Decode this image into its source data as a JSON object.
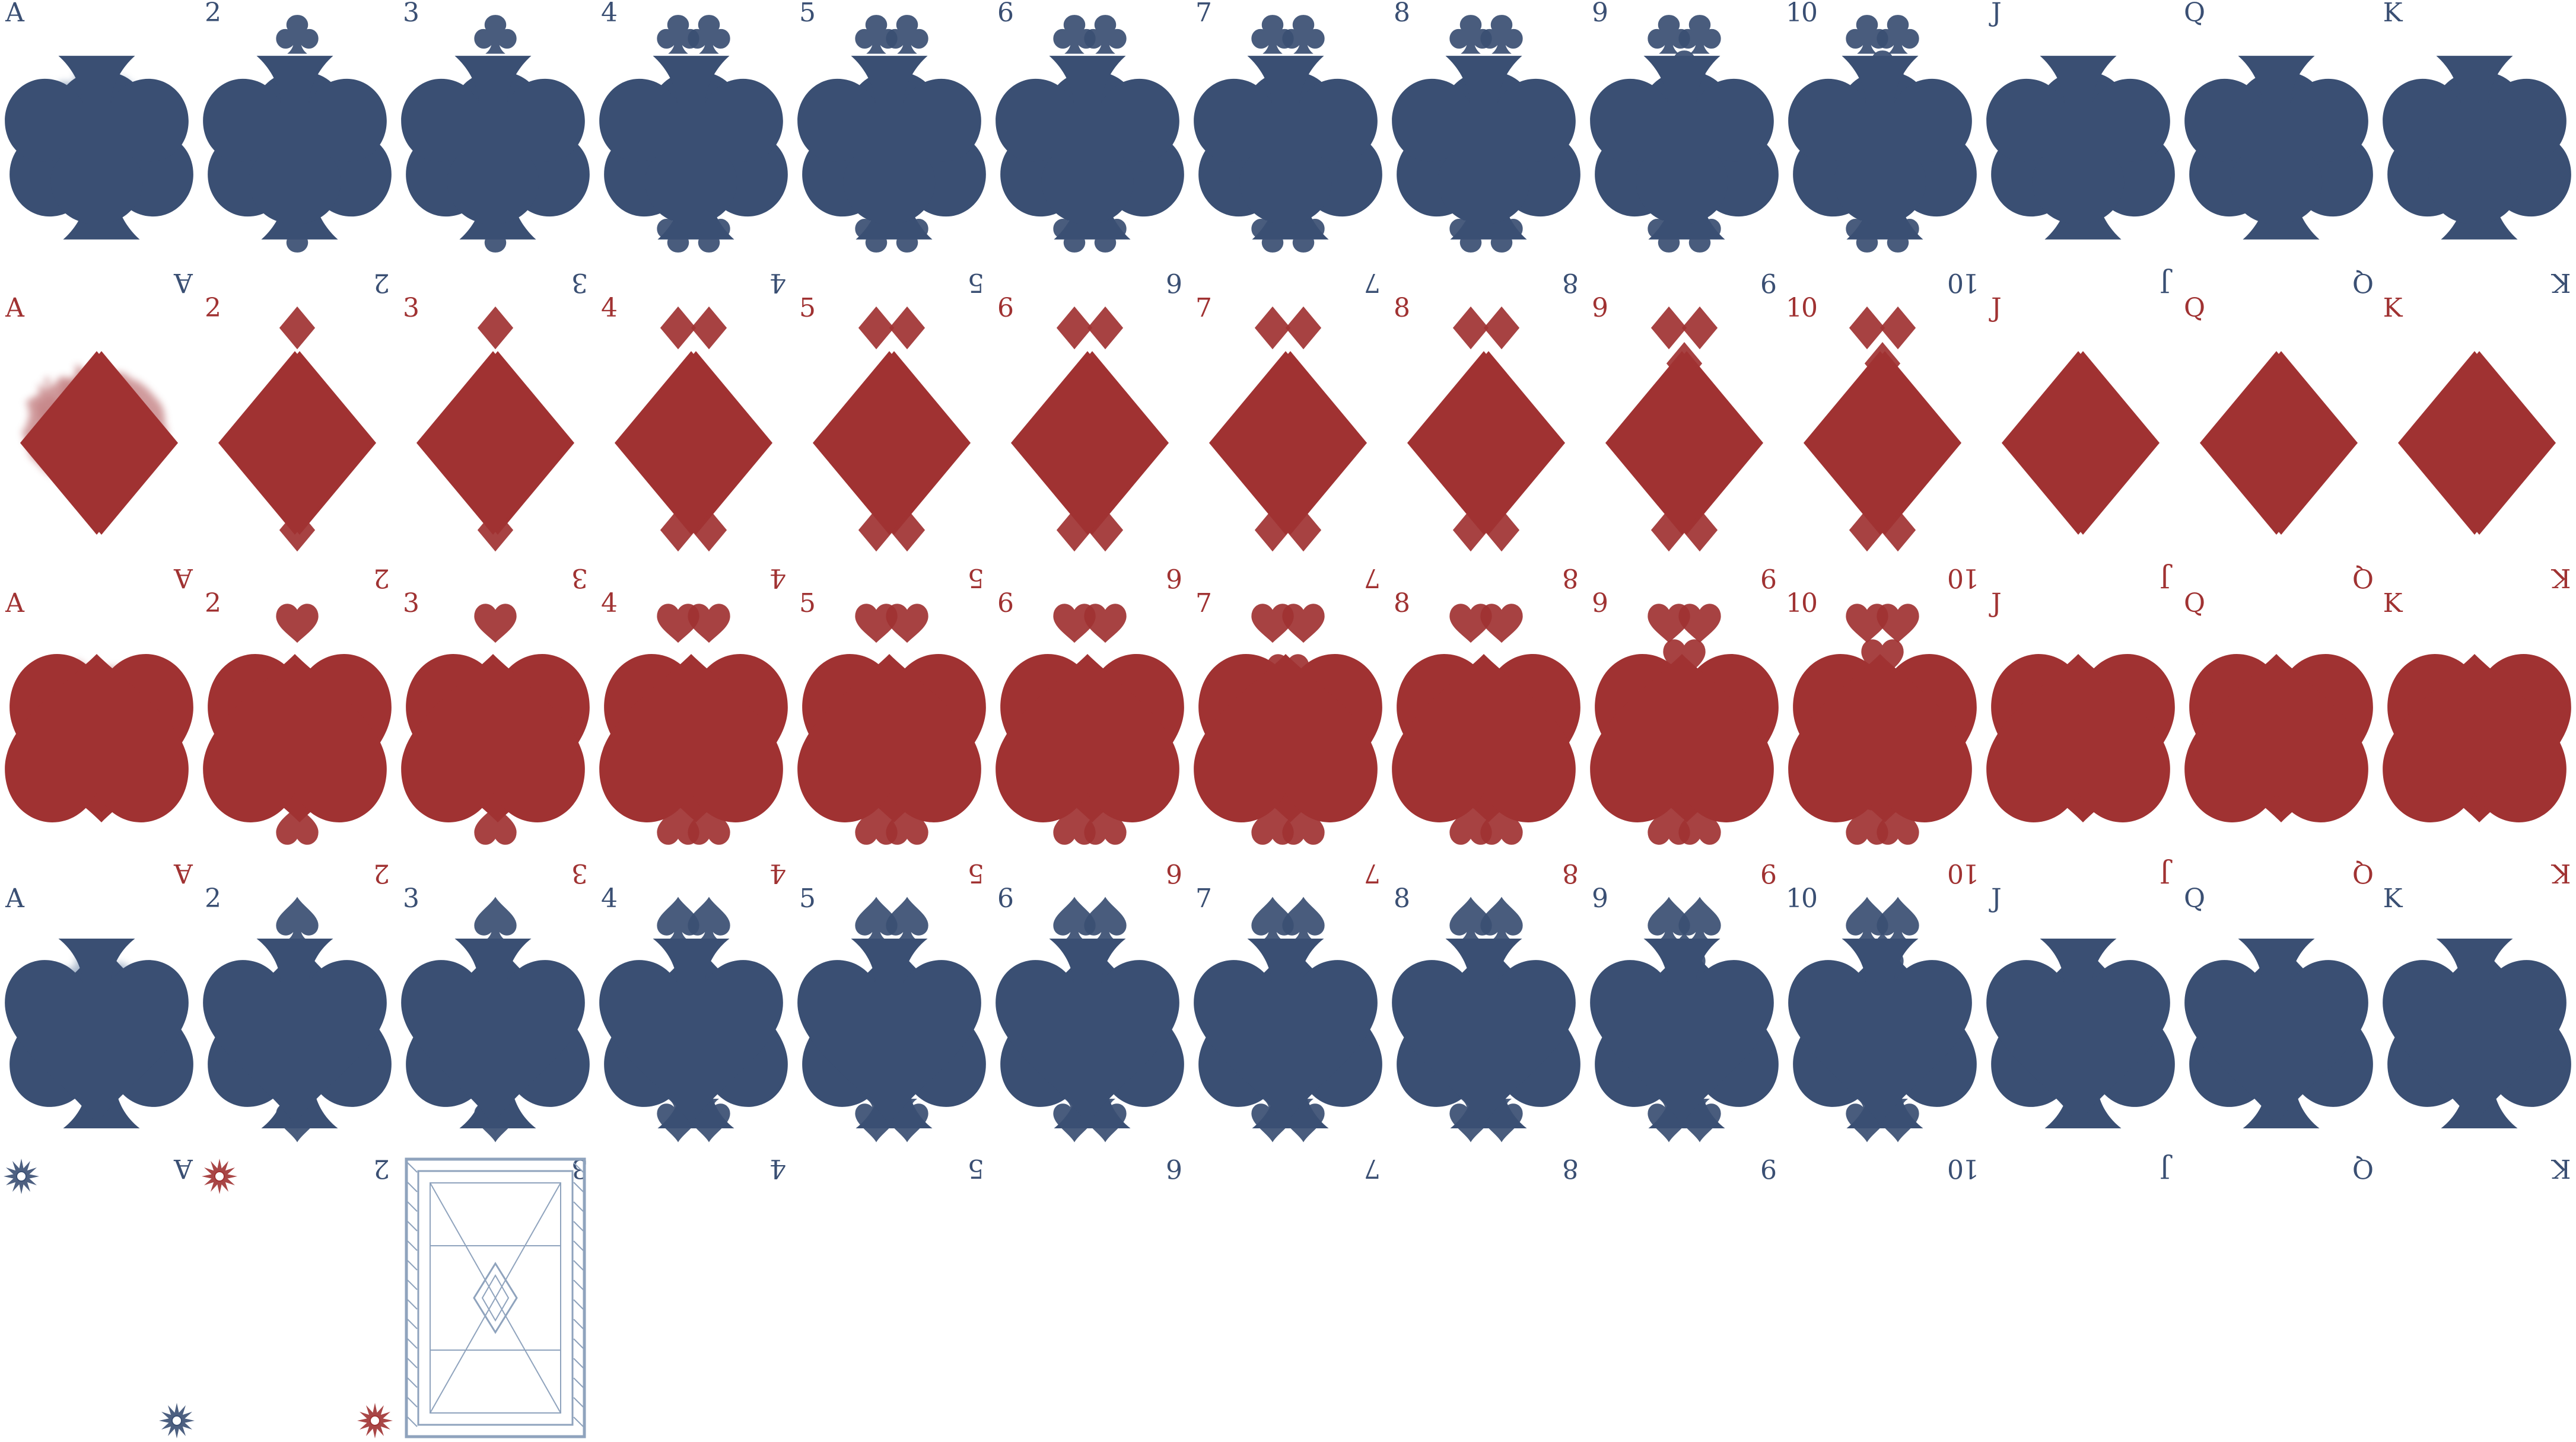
{
  "sheet": {
    "type": "playing-card-sprite-sheet",
    "ranks": [
      "A",
      "2",
      "3",
      "4",
      "5",
      "6",
      "7",
      "8",
      "9",
      "10",
      "J",
      "Q",
      "K"
    ],
    "suits": [
      {
        "name": "clubs",
        "color": "#3a4f73",
        "icon": "club-icon"
      },
      {
        "name": "diamonds",
        "color": "#a03232",
        "icon": "diamond-icon"
      },
      {
        "name": "hearts",
        "color": "#a03232",
        "icon": "heart-icon"
      },
      {
        "name": "spades",
        "color": "#3a4f73",
        "icon": "spade-icon"
      }
    ],
    "ace_art_colors": {
      "clubs": "#8fa3bd",
      "diamonds": "#c0787a",
      "hearts": "#c0787a",
      "spades": "#8fa3bd"
    },
    "extras": {
      "card_back": {
        "icon": "card-back-icon",
        "color": "#8fa3bd"
      },
      "stars": [
        {
          "icon": "star-burst-icon",
          "color": "#3a4f73"
        },
        {
          "icon": "star-burst-icon",
          "color": "#a03232"
        },
        {
          "icon": "star-burst-icon",
          "color": "#3a4f73"
        },
        {
          "icon": "star-burst-icon",
          "color": "#a03232"
        }
      ]
    }
  }
}
